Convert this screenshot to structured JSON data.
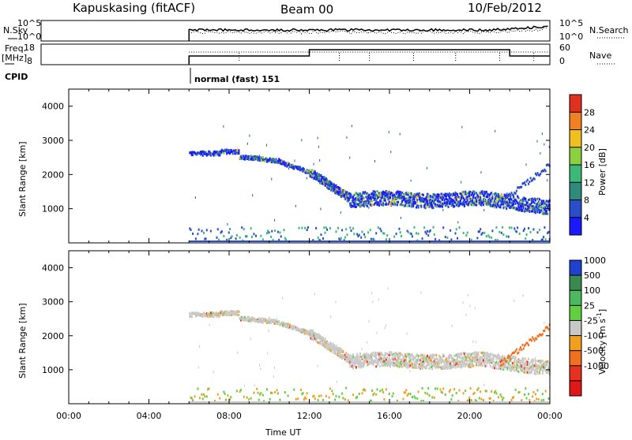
{
  "header": {
    "station": "Kapuskasing (fitACF)",
    "beam": "Beam 00",
    "date": "10/Feb/2012"
  },
  "top_panel": {
    "nsky_label": "N.Sky",
    "nsearch_label": "N.Search",
    "left_ticks": [
      "10^5",
      "10^0"
    ],
    "right_ticks": [
      "10^5",
      "10^0"
    ],
    "freq_label_1": "Freq.",
    "freq_label_2": "[MHz]",
    "freq_ticks": [
      "18",
      "8"
    ],
    "nave_label": "Nave",
    "nave_ticks": [
      "60",
      "0"
    ],
    "cpid_label": "CPID",
    "cpid_text": "normal (fast) 151"
  },
  "chart_data": [
    {
      "type": "heatmap",
      "name": "power-panel",
      "ylabel": "Slant Range [km]",
      "xlabel": "",
      "xlim": [
        "00:00",
        "24:00"
      ],
      "ylim": [
        0,
        4500
      ],
      "yticks": [
        1000,
        2000,
        3000,
        4000
      ],
      "colorbar": {
        "label": "Power [dB]",
        "ticks": [
          "4",
          "8",
          "12",
          "16",
          "20",
          "24",
          "28"
        ],
        "colors": [
          "#1a1aff",
          "#2a4ec8",
          "#2e8a7a",
          "#3cb878",
          "#8cd040",
          "#f0c020",
          "#f08020",
          "#e03020"
        ]
      },
      "echo_bands": [
        {
          "t_start": 6.0,
          "t_end": 8.0,
          "range_center": 2650,
          "note": ""
        },
        {
          "t_start": 8.0,
          "t_end": 12.0,
          "range_center": 2300
        },
        {
          "t_start": 12.0,
          "t_end": 24.0,
          "range_center": 1250
        }
      ]
    },
    {
      "type": "heatmap",
      "name": "velocity-panel",
      "ylabel": "Slant Range [km]",
      "xlabel": "Time UT",
      "xticks": [
        "00:00",
        "04:00",
        "08:00",
        "12:00",
        "16:00",
        "20:00",
        "00:00"
      ],
      "ylim": [
        0,
        4500
      ],
      "yticks": [
        1000,
        2000,
        3000,
        4000
      ],
      "colorbar": {
        "label": "Velocity",
        "label_unit": "[m s",
        "label_sup": "-1",
        "label_end": "]",
        "ticks": [
          "1000",
          "500",
          "100",
          "25",
          "-25",
          "-100",
          "-500",
          "-1000"
        ],
        "colors": [
          "#2040d0",
          "#3a8a50",
          "#4cb860",
          "#60d040",
          "#c8c8c8",
          "#f0a020",
          "#f07020",
          "#e83020",
          "#e01818"
        ]
      }
    }
  ]
}
